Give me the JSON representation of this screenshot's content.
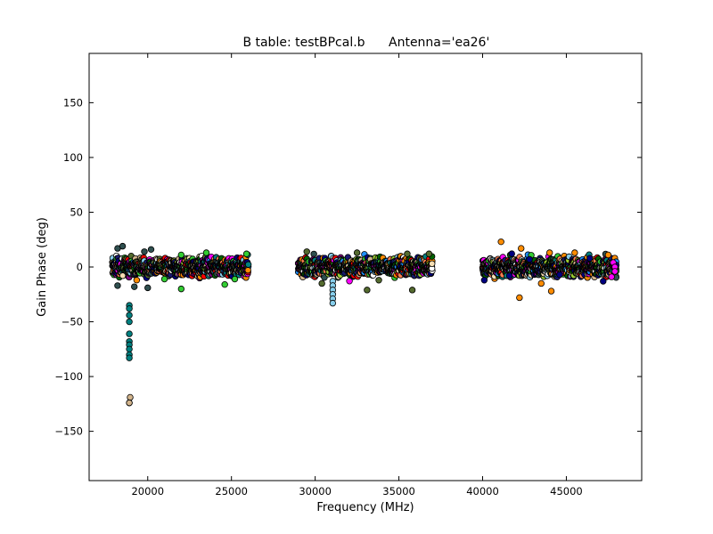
{
  "chart_data": {
    "type": "scatter",
    "title": "B table: testBPcal.b",
    "subtitle": "Antenna='ea26'",
    "xlabel": "Frequency (MHz)",
    "ylabel": "Gain Phase (deg)",
    "xlim": [
      16500,
      49500
    ],
    "ylim": [
      -195,
      195
    ],
    "x_ticks": [
      20000,
      25000,
      30000,
      35000,
      40000,
      45000
    ],
    "x_tick_labels": [
      "20000",
      "25000",
      "30000",
      "35000",
      "40000",
      "45000"
    ],
    "y_ticks": [
      -150,
      -100,
      -50,
      0,
      50,
      100,
      150
    ],
    "y_tick_labels": [
      "−150",
      "−100",
      "−50",
      "0",
      "50",
      "100",
      "150"
    ],
    "grid": false,
    "legend": "none",
    "marker": "circle with black edge",
    "palette": [
      "#008080",
      "#2f4f4f",
      "#ff8c00",
      "#32cd32",
      "#000080",
      "#ff00ff",
      "#87ceeb",
      "#d2b48c",
      "#ffffff",
      "#ff0000",
      "#1e90ff",
      "#9acd32",
      "#191970",
      "#556b2f",
      "#ff7f50",
      "#006400",
      "#800080",
      "#f5deb3"
    ],
    "bands": [
      {
        "x_start": 17900,
        "x_end": 26000,
        "y_center": 0,
        "y_spread": 14
      },
      {
        "x_start": 29000,
        "x_end": 37000,
        "y_center": 0,
        "y_spread": 14
      },
      {
        "x_start": 40000,
        "x_end": 48000,
        "y_center": 0,
        "y_spread": 14
      }
    ],
    "series": [
      {
        "x": [
          18900,
          18900,
          18900,
          18900,
          18900,
          18900,
          18900,
          18900,
          18900,
          18900,
          18900
        ],
        "y": [
          -35,
          -38,
          -44,
          -50,
          -61,
          -68,
          -71,
          -75,
          -80,
          -83,
          -124
        ],
        "color": "#008080"
      },
      {
        "x": [
          18950,
          18900
        ],
        "y": [
          -119,
          -124
        ],
        "color": "#d2b48c"
      },
      {
        "x": [
          31050,
          31050,
          31050,
          31050,
          31050,
          31050
        ],
        "y": [
          -13,
          -17,
          -21,
          -25,
          -29,
          -33
        ],
        "color": "#87ceeb"
      },
      {
        "x": [
          18200,
          18200,
          18500,
          19200,
          19800,
          20000,
          20200
        ],
        "y": [
          17,
          -17,
          19,
          -18,
          14,
          -19,
          16
        ],
        "color": "#2f4f4f"
      },
      {
        "x": [
          21000,
          22000,
          22000,
          23500,
          24600,
          25200,
          25900
        ],
        "y": [
          -11,
          11,
          -20,
          13,
          -16,
          -11,
          12
        ],
        "color": "#32cd32"
      },
      {
        "x": [
          29500,
          30400,
          32500,
          33100,
          33800,
          35500,
          35800,
          36800
        ],
        "y": [
          14,
          -15,
          13,
          -21,
          -12,
          12,
          -21,
          12
        ],
        "color": "#556b2f"
      },
      {
        "x": [
          41100,
          42200,
          42300,
          43500,
          44000,
          44100,
          45500,
          47500
        ],
        "y": [
          23,
          -28,
          17,
          -15,
          13,
          -22,
          13,
          11
        ],
        "color": "#ff8c00"
      },
      {
        "x": [
          47800,
          47900,
          47900,
          47700
        ],
        "y": [
          4,
          0,
          -4,
          -9
        ],
        "color": "#ff00ff"
      },
      {
        "x": [
          40100,
          41600,
          42800,
          44600,
          46400,
          47200
        ],
        "y": [
          -12,
          -8,
          7,
          -7,
          8,
          -13
        ],
        "color": "#000080"
      }
    ]
  }
}
